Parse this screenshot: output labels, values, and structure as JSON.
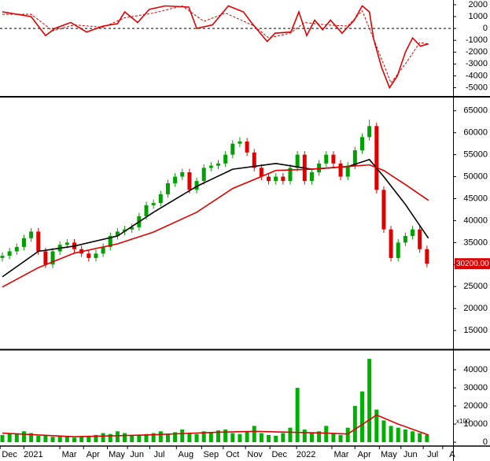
{
  "chart_data": [
    {
      "type": "line",
      "ylim": [
        -5700,
        2400
      ],
      "yticks": [
        2000,
        1000,
        0,
        -1000,
        -2000,
        -3000,
        -4000,
        -5000
      ],
      "hline": 0,
      "series": [
        {
          "color": "#e00000",
          "dashed": false,
          "x": [
            0,
            2,
            4,
            6,
            7.3,
            9.5,
            11.7,
            14,
            16,
            17,
            18.8,
            20.4,
            22.6,
            25.9,
            27,
            29.2,
            31.4,
            33.5,
            34.6,
            36.8,
            37.9,
            40.1,
            41.2,
            42.3,
            43.4,
            44.5,
            45.6,
            47.2,
            48.9,
            50,
            51,
            51.6,
            52.7,
            53.8,
            54.9,
            56,
            57,
            58.1,
            59.2
          ],
          "values": [
            1400,
            1200,
            1000,
            -600,
            0,
            500,
            -300,
            200,
            400,
            1400,
            500,
            1600,
            1900,
            1800,
            0,
            300,
            1900,
            1400,
            500,
            -1100,
            -400,
            -300,
            1400,
            -600,
            700,
            -100,
            700,
            -400,
            700,
            1900,
            1400,
            -900,
            -3300,
            -5000,
            -4000,
            -2000,
            -800,
            -1500,
            -1300
          ]
        },
        {
          "color": "#e00000",
          "dashed": true,
          "x": [
            0,
            4,
            7,
            10,
            14,
            17,
            21,
            25,
            28,
            31,
            35,
            37,
            40,
            42,
            45,
            48,
            50,
            52,
            54,
            56,
            58,
            59.2
          ],
          "values": [
            1200,
            1200,
            -200,
            300,
            100,
            900,
            1300,
            1900,
            600,
            1300,
            200,
            -800,
            -400,
            500,
            300,
            200,
            1500,
            -1500,
            -4600,
            -3000,
            -1200,
            -1300
          ]
        }
      ]
    },
    {
      "type": "candlestick",
      "ylim": [
        10900,
        68000
      ],
      "yticks": [
        65000,
        60000,
        55000,
        50000,
        45000,
        40000,
        35000,
        30000,
        25000,
        20000,
        15000
      ],
      "up_color": "#00a000",
      "down_color": "#e00000",
      "open": [
        31500,
        32000,
        33000,
        34000,
        36000,
        37500,
        33000,
        30000,
        33000,
        34500,
        35000,
        33500,
        32500,
        31500,
        32500,
        34000,
        36500,
        37500,
        38000,
        38500,
        41000,
        43500,
        44000,
        46000,
        48500,
        50000,
        51000,
        47000,
        49000,
        52000,
        52500,
        53000,
        55000,
        57500,
        58000,
        55500,
        52000,
        50000,
        49000,
        50000,
        49000,
        52000,
        55000,
        49000,
        51000,
        53000,
        55000,
        53000,
        50000,
        52500,
        56000,
        59000,
        61500,
        47000,
        38000,
        31500,
        35000,
        36500,
        38000,
        33500
      ],
      "high": [
        32800,
        33800,
        34800,
        36800,
        38300,
        38300,
        33800,
        33800,
        35300,
        35800,
        35800,
        34300,
        33300,
        33300,
        34800,
        37300,
        38300,
        38800,
        39300,
        41800,
        44300,
        44800,
        46800,
        49300,
        50800,
        51800,
        51800,
        49800,
        52800,
        53300,
        53800,
        55800,
        58300,
        59000,
        58800,
        56300,
        52800,
        50800,
        50800,
        50800,
        52800,
        55800,
        55800,
        51800,
        53800,
        55800,
        55800,
        53800,
        53300,
        56800,
        59800,
        63000,
        62300,
        47800,
        38800,
        35800,
        37300,
        38800,
        38800,
        34300
      ],
      "low": [
        30700,
        31200,
        32200,
        33200,
        35200,
        32200,
        29200,
        29200,
        32200,
        33700,
        32700,
        31700,
        30700,
        30700,
        31700,
        33200,
        35700,
        36700,
        37200,
        37700,
        40200,
        42700,
        43200,
        45200,
        47700,
        49200,
        46200,
        46200,
        48200,
        51200,
        51700,
        52200,
        54200,
        56700,
        54700,
        51200,
        49200,
        48200,
        48200,
        48200,
        48200,
        51200,
        48200,
        48200,
        50200,
        52200,
        52200,
        49200,
        49200,
        51700,
        55200,
        58200,
        46200,
        37200,
        30700,
        30700,
        34200,
        35700,
        32700,
        29400
      ],
      "close": [
        32000,
        33000,
        34000,
        36000,
        37500,
        33000,
        30000,
        33000,
        34500,
        35000,
        33500,
        32500,
        31500,
        32500,
        34000,
        36500,
        37500,
        38000,
        38500,
        41000,
        43500,
        44000,
        46000,
        48500,
        50000,
        51000,
        47000,
        49000,
        52000,
        52500,
        53000,
        55000,
        57500,
        58000,
        55500,
        52000,
        50000,
        49000,
        50000,
        49000,
        52000,
        55000,
        49000,
        51000,
        53000,
        55000,
        53000,
        50000,
        52500,
        56000,
        59000,
        61500,
        47000,
        38000,
        31500,
        35000,
        36500,
        38000,
        33500,
        30200
      ],
      "series": [
        {
          "color": "#000000",
          "x": [
            0,
            5,
            10,
            16,
            21,
            27,
            32,
            38,
            43,
            48,
            51,
            53,
            56,
            59.2
          ],
          "values": [
            27200,
            33000,
            34200,
            36500,
            41900,
            47800,
            51700,
            53000,
            51700,
            52300,
            53900,
            50000,
            43700,
            36000
          ]
        },
        {
          "color": "#e00000",
          "x": [
            0,
            5,
            10,
            16,
            21,
            27,
            32,
            38,
            43,
            48,
            51,
            53,
            56,
            59.2
          ],
          "values": [
            24900,
            29300,
            32600,
            34700,
            37400,
            41900,
            47300,
            51400,
            51700,
            52300,
            52700,
            51400,
            48200,
            44600
          ]
        }
      ],
      "last_price": {
        "value": 30200,
        "label": "30200.00"
      }
    },
    {
      "type": "bar",
      "ylim": [
        -1700,
        50400
      ],
      "yticks": [
        40000,
        30000,
        20000,
        10000,
        0
      ],
      "color": "#00b000",
      "unit_label": "x100",
      "values": [
        4000,
        5000,
        4500,
        6000,
        5000,
        3500,
        4000,
        3000,
        3500,
        3000,
        2500,
        3000,
        3500,
        4000,
        5000,
        4500,
        6000,
        5000,
        3500,
        4000,
        4500,
        5000,
        6000,
        4500,
        5500,
        7000,
        5000,
        4500,
        6000,
        5500,
        6500,
        7000,
        5000,
        4500,
        6000,
        9000,
        5000,
        4000,
        3500,
        5000,
        8000,
        30000,
        7000,
        5000,
        6000,
        9000,
        5000,
        4000,
        8000,
        20000,
        28000,
        46000,
        18000,
        12000,
        9000,
        8000,
        7000,
        6000,
        5000,
        4000
      ],
      "series": [
        {
          "color": "#e00000",
          "x": [
            0,
            10,
            20,
            30,
            35,
            40,
            45,
            48,
            52,
            55,
            59.2
          ],
          "values": [
            5000,
            3000,
            4000,
            5500,
            6000,
            5500,
            5000,
            4500,
            15000,
            10000,
            4000
          ]
        }
      ],
      "xticks": [
        {
          "value": 1,
          "label": "Dec"
        },
        {
          "value": 4.3,
          "label": "2021"
        },
        {
          "value": 9.3,
          "label": "Mar"
        },
        {
          "value": 12.6,
          "label": "Apr"
        },
        {
          "value": 15.9,
          "label": "May"
        },
        {
          "value": 18.7,
          "label": "Jun"
        },
        {
          "value": 21.8,
          "label": "Jul"
        },
        {
          "value": 25.5,
          "label": "Aug"
        },
        {
          "value": 29,
          "label": "Sep"
        },
        {
          "value": 32,
          "label": "Oct"
        },
        {
          "value": 35.1,
          "label": "Nov"
        },
        {
          "value": 38.5,
          "label": "Dec"
        },
        {
          "value": 42.2,
          "label": "2022"
        },
        {
          "value": 47.1,
          "label": "Mar"
        },
        {
          "value": 50.3,
          "label": "Apr"
        },
        {
          "value": 53.7,
          "label": "May"
        },
        {
          "value": 56.7,
          "label": "Jun"
        },
        {
          "value": 59.8,
          "label": "Jul"
        },
        {
          "value": 62.5,
          "label": "A"
        }
      ]
    }
  ]
}
